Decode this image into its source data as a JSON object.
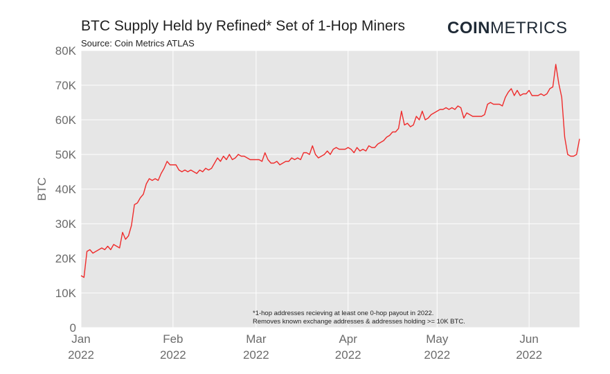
{
  "header": {
    "title": "BTC Supply Held by Refined* Set of 1-Hop Miners",
    "subtitle": "Source: Coin Metrics ATLAS",
    "logo_bold": "COIN",
    "logo_light": "METRICS"
  },
  "colors": {
    "line": "#ef2b2b",
    "plot_background": "#e6e6e6",
    "grid": "#ffffff"
  },
  "chart_data": {
    "type": "line",
    "title": "BTC Supply Held by Refined* Set of 1-Hop Miners",
    "subtitle": "Source: Coin Metrics ATLAS",
    "xlabel": "",
    "ylabel": "BTC",
    "ylim": [
      0,
      80000
    ],
    "xlim": [
      "2022-01-01",
      "2022-06-18"
    ],
    "y_ticks": [
      0,
      10000,
      20000,
      30000,
      40000,
      50000,
      60000,
      70000,
      80000
    ],
    "y_tick_labels": [
      "0",
      "10K",
      "20K",
      "30K",
      "40K",
      "50K",
      "60K",
      "70K",
      "80K"
    ],
    "x_ticks": [
      "2022-01-01",
      "2022-02-01",
      "2022-03-01",
      "2022-04-01",
      "2022-05-01",
      "2022-06-01"
    ],
    "x_tick_labels": [
      [
        "Jan",
        "2022"
      ],
      [
        "Feb",
        "2022"
      ],
      [
        "Mar",
        "2022"
      ],
      [
        "Apr",
        "2022"
      ],
      [
        "May",
        "2022"
      ],
      [
        "Jun",
        "2022"
      ]
    ],
    "grid": true,
    "legend": "none",
    "annotations": [
      "*1-hop addresses recieving at least one 0-hop payout in 2022.",
      "Removes known exchange addresses & addresses holding >= 10K BTC."
    ],
    "series": [
      {
        "x": [
          "2022-01-01",
          "2022-01-02",
          "2022-01-03",
          "2022-01-04",
          "2022-01-05",
          "2022-01-06",
          "2022-01-07",
          "2022-01-08",
          "2022-01-09",
          "2022-01-10",
          "2022-01-11",
          "2022-01-12",
          "2022-01-13",
          "2022-01-14",
          "2022-01-15",
          "2022-01-16",
          "2022-01-17",
          "2022-01-18",
          "2022-01-19",
          "2022-01-20",
          "2022-01-21",
          "2022-01-22",
          "2022-01-23",
          "2022-01-24",
          "2022-01-25",
          "2022-01-26",
          "2022-01-27",
          "2022-01-28",
          "2022-01-29",
          "2022-01-30",
          "2022-01-31",
          "2022-02-01",
          "2022-02-02",
          "2022-02-03",
          "2022-02-04",
          "2022-02-05",
          "2022-02-06",
          "2022-02-07",
          "2022-02-08",
          "2022-02-09",
          "2022-02-10",
          "2022-02-11",
          "2022-02-12",
          "2022-02-13",
          "2022-02-14",
          "2022-02-15",
          "2022-02-16",
          "2022-02-17",
          "2022-02-18",
          "2022-02-19",
          "2022-02-20",
          "2022-02-21",
          "2022-02-22",
          "2022-02-23",
          "2022-02-24",
          "2022-02-25",
          "2022-02-26",
          "2022-02-27",
          "2022-02-28",
          "2022-03-01",
          "2022-03-02",
          "2022-03-03",
          "2022-03-04",
          "2022-03-05",
          "2022-03-06",
          "2022-03-07",
          "2022-03-08",
          "2022-03-09",
          "2022-03-10",
          "2022-03-11",
          "2022-03-12",
          "2022-03-13",
          "2022-03-14",
          "2022-03-15",
          "2022-03-16",
          "2022-03-17",
          "2022-03-18",
          "2022-03-19",
          "2022-03-20",
          "2022-03-21",
          "2022-03-22",
          "2022-03-23",
          "2022-03-24",
          "2022-03-25",
          "2022-03-26",
          "2022-03-27",
          "2022-03-28",
          "2022-03-29",
          "2022-03-30",
          "2022-03-31",
          "2022-04-01",
          "2022-04-02",
          "2022-04-03",
          "2022-04-04",
          "2022-04-05",
          "2022-04-06",
          "2022-04-07",
          "2022-04-08",
          "2022-04-09",
          "2022-04-10",
          "2022-04-11",
          "2022-04-12",
          "2022-04-13",
          "2022-04-14",
          "2022-04-15",
          "2022-04-16",
          "2022-04-17",
          "2022-04-18",
          "2022-04-19",
          "2022-04-20",
          "2022-04-21",
          "2022-04-22",
          "2022-04-23",
          "2022-04-24",
          "2022-04-25",
          "2022-04-26",
          "2022-04-27",
          "2022-04-28",
          "2022-04-29",
          "2022-04-30",
          "2022-05-01",
          "2022-05-02",
          "2022-05-03",
          "2022-05-04",
          "2022-05-05",
          "2022-05-06",
          "2022-05-07",
          "2022-05-08",
          "2022-05-09",
          "2022-05-10",
          "2022-05-11",
          "2022-05-12",
          "2022-05-13",
          "2022-05-14",
          "2022-05-15",
          "2022-05-16",
          "2022-05-17",
          "2022-05-18",
          "2022-05-19",
          "2022-05-20",
          "2022-05-21",
          "2022-05-22",
          "2022-05-23",
          "2022-05-24",
          "2022-05-25",
          "2022-05-26",
          "2022-05-27",
          "2022-05-28",
          "2022-05-29",
          "2022-05-30",
          "2022-05-31",
          "2022-06-01",
          "2022-06-02",
          "2022-06-03",
          "2022-06-04",
          "2022-06-05",
          "2022-06-06",
          "2022-06-07",
          "2022-06-08",
          "2022-06-09",
          "2022-06-10",
          "2022-06-11",
          "2022-06-12",
          "2022-06-13",
          "2022-06-14",
          "2022-06-15",
          "2022-06-16",
          "2022-06-17",
          "2022-06-18"
        ],
        "y": [
          15000,
          14500,
          22000,
          22500,
          21500,
          22000,
          22500,
          23000,
          22500,
          23500,
          22500,
          24000,
          23500,
          23000,
          27500,
          25500,
          26500,
          29500,
          35500,
          36000,
          37500,
          38500,
          41500,
          43000,
          42500,
          43000,
          42500,
          44500,
          46000,
          48000,
          47000,
          47000,
          47000,
          45500,
          45000,
          45500,
          45000,
          45500,
          45000,
          44500,
          45500,
          45000,
          46000,
          45500,
          46000,
          47500,
          49000,
          48000,
          49500,
          48500,
          50000,
          48500,
          49000,
          50000,
          49500,
          49500,
          49000,
          48500,
          48500,
          48500,
          48500,
          48000,
          50500,
          48500,
          47500,
          47500,
          48000,
          47000,
          47500,
          48000,
          48000,
          49000,
          48500,
          49000,
          48500,
          50500,
          50500,
          50000,
          52500,
          50000,
          49000,
          49500,
          50000,
          51000,
          50000,
          51500,
          52000,
          51500,
          51500,
          51500,
          52000,
          51500,
          50500,
          52000,
          51000,
          51500,
          51000,
          52500,
          52000,
          52000,
          53000,
          53500,
          54000,
          55000,
          55500,
          56500,
          56500,
          57500,
          62500,
          58500,
          59000,
          58000,
          58500,
          61000,
          60000,
          62500,
          60000,
          60500,
          61500,
          62000,
          62500,
          63000,
          63000,
          63500,
          63000,
          63500,
          63000,
          64000,
          63500,
          60500,
          62000,
          61500,
          61000,
          61000,
          61000,
          61000,
          61500,
          64500,
          65000,
          64500,
          64500,
          64500,
          64000,
          66500,
          68000,
          69000,
          67000,
          68500,
          67000,
          67500,
          67500,
          68500,
          67000,
          67000,
          67000,
          67500,
          67000,
          67500,
          69000,
          69500,
          76000,
          70500,
          66500,
          55000,
          50000,
          49500,
          49500,
          50000,
          54500
        ]
      }
    ]
  }
}
